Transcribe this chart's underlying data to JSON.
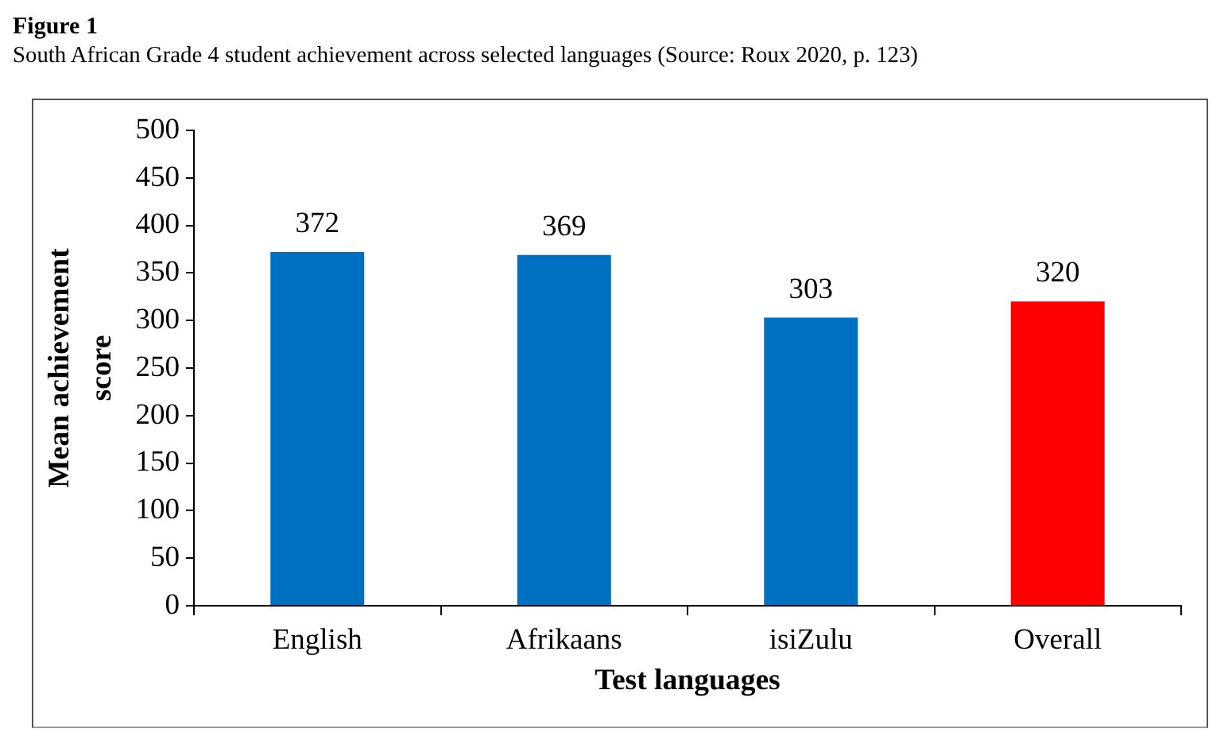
{
  "chart_data": {
    "type": "bar",
    "title": "Figure 1",
    "subtitle": "South African Grade 4 student achievement across selected languages (Source: Roux 2020, p. 123)",
    "xlabel": "Test languages",
    "ylabel": "Mean achievement score",
    "categories": [
      "English",
      "Afrikaans",
      "isiZulu",
      "Overall"
    ],
    "values": [
      372,
      369,
      303,
      320
    ],
    "colors": [
      "#0070c0",
      "#0070c0",
      "#0070c0",
      "#ff0000"
    ],
    "ylim": [
      0,
      500
    ],
    "yticks": [
      0,
      50,
      100,
      150,
      200,
      250,
      300,
      350,
      400,
      450,
      500
    ],
    "data_labels": true
  }
}
